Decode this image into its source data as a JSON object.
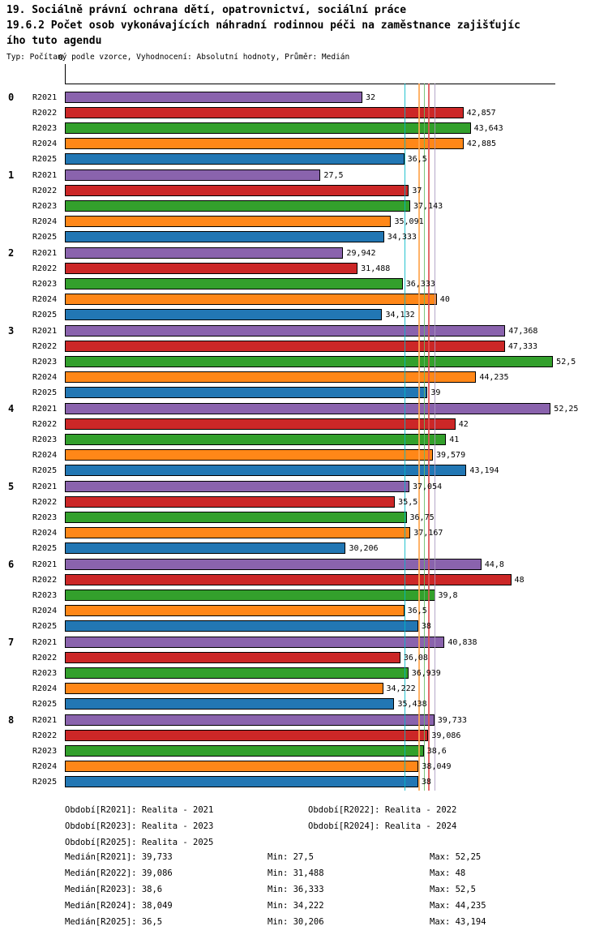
{
  "chart_data": {
    "type": "bar",
    "orientation": "horizontal",
    "title_lines": [
      "19. Sociálně právní ochrana dětí, opatrovnictví, sociální práce",
      "19.6.2 Počet osob vykonávajících náhradní rodinnou péči na zaměstnance zajišťujíc",
      "ího tuto agendu"
    ],
    "subtitle": "Typ: Počítaný podle vzorce, Vyhodnocení: Absolutní hodnoty, Průměr: Medián",
    "x_axis": {
      "origin_label": "0",
      "approx_max": 52.6,
      "gridlines": false
    },
    "legend_position": "bottom",
    "series": [
      {
        "name": "R2021",
        "color": "#8a63ad"
      },
      {
        "name": "R2022",
        "color": "#cc2727"
      },
      {
        "name": "R2023",
        "color": "#33a02c"
      },
      {
        "name": "R2024",
        "color": "#ff8718"
      },
      {
        "name": "R2025",
        "color": "#2277b4"
      }
    ],
    "categories": [
      "0",
      "1",
      "2",
      "3",
      "4",
      "5",
      "6",
      "7",
      "8"
    ],
    "groups": [
      {
        "category": "0",
        "values": [
          "32",
          "42,857",
          "43,643",
          "42,885",
          "36,5"
        ]
      },
      {
        "category": "1",
        "values": [
          "27,5",
          "37",
          "37,143",
          "35,091",
          "34,333"
        ]
      },
      {
        "category": "2",
        "values": [
          "29,942",
          "31,488",
          "36,333",
          "40",
          "34,132"
        ]
      },
      {
        "category": "3",
        "values": [
          "47,368",
          "47,333",
          "52,5",
          "44,235",
          "39"
        ]
      },
      {
        "category": "4",
        "values": [
          "52,25",
          "42",
          "41",
          "39,579",
          "43,194"
        ]
      },
      {
        "category": "5",
        "values": [
          "37,054",
          "35,5",
          "36,75",
          "37,167",
          "30,206"
        ]
      },
      {
        "category": "6",
        "values": [
          "44,8",
          "48",
          "39,8",
          "36,5",
          "38"
        ]
      },
      {
        "category": "7",
        "values": [
          "40,838",
          "36,08",
          "36,939",
          "34,222",
          "35,438"
        ]
      },
      {
        "category": "8",
        "values": [
          "39,733",
          "39,086",
          "38,6",
          "38,049",
          "38"
        ]
      }
    ],
    "median_lines": [
      {
        "series": "R2021",
        "value": "39,733",
        "color": "#aa98c0"
      },
      {
        "series": "R2022",
        "value": "39,086",
        "color": "#e05252"
      },
      {
        "series": "R2023",
        "value": "38,6",
        "color": "#66bb66"
      },
      {
        "series": "R2024",
        "value": "38,049",
        "color": "#ffa64d"
      },
      {
        "series": "R2025",
        "value": "36,5",
        "color": "#00b8c8"
      }
    ]
  },
  "legend": {
    "items": [
      {
        "series": "R2021",
        "text": "Období[R2021]: Realita - 2021"
      },
      {
        "series": "R2022",
        "text": "Období[R2022]: Realita - 2022"
      },
      {
        "series": "R2023",
        "text": "Období[R2023]: Realita - 2023"
      },
      {
        "series": "R2024",
        "text": "Období[R2024]: Realita - 2024"
      },
      {
        "series": "R2025",
        "text": "Období[R2025]: Realita - 2025"
      }
    ]
  },
  "stats": {
    "rows": [
      {
        "series": "R2021",
        "median": "Medián[R2021]: 39,733",
        "min": "Min: 27,5",
        "max": "Max: 52,25"
      },
      {
        "series": "R2022",
        "median": "Medián[R2022]: 39,086",
        "min": "Min: 31,488",
        "max": "Max: 48"
      },
      {
        "series": "R2023",
        "median": "Medián[R2023]: 38,6",
        "min": "Min: 36,333",
        "max": "Max: 52,5"
      },
      {
        "series": "R2024",
        "median": "Medián[R2024]: 38,049",
        "min": "Min: 34,222",
        "max": "Max: 44,235"
      },
      {
        "series": "R2025",
        "median": "Medián[R2025]: 36,5",
        "min": "Min: 30,206",
        "max": "Max: 43,194"
      }
    ]
  }
}
